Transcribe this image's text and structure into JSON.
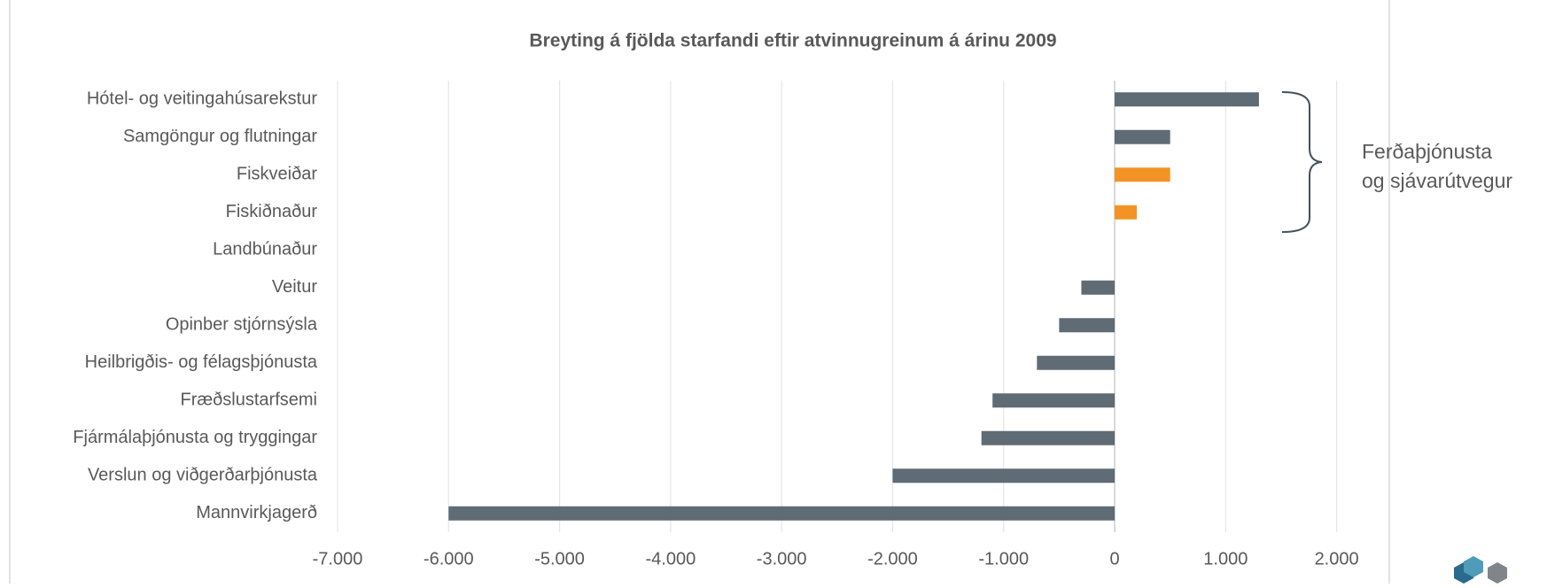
{
  "chart_data": {
    "type": "bar",
    "orientation": "horizontal",
    "title": "Breyting á fjölda starfandi eftir atvinnugreinum á árinu 2009",
    "categories": [
      "Hótel- og veitingahúsarekstur",
      "Samgöngur og flutningar",
      "Fiskveiðar",
      "Fiskiðnaður",
      "Landbúnaður",
      "Veitur",
      "Opinber stjórnsýsla",
      "Heilbrigðis- og félagsþjónusta",
      "Fræðslustarfsemi",
      "Fjármálaþjónusta og tryggingar",
      "Verslun og viðgerðarþjónusta",
      "Mannvirkjagerð"
    ],
    "values": [
      1300,
      500,
      500,
      200,
      0,
      -300,
      -500,
      -700,
      -1100,
      -1200,
      -2000,
      -6000
    ],
    "colors": [
      "#5f6b75",
      "#5f6b75",
      "#f39325",
      "#f39325",
      "#5f6b75",
      "#5f6b75",
      "#5f6b75",
      "#5f6b75",
      "#5f6b75",
      "#5f6b75",
      "#5f6b75",
      "#5f6b75"
    ],
    "xlim": [
      -7000,
      2000
    ],
    "xticks": [
      {
        "value": -7000,
        "label": "-7.000"
      },
      {
        "value": -6000,
        "label": "-6.000"
      },
      {
        "value": -5000,
        "label": "-5.000"
      },
      {
        "value": -4000,
        "label": "-4.000"
      },
      {
        "value": -3000,
        "label": "-3.000"
      },
      {
        "value": -2000,
        "label": "-2.000"
      },
      {
        "value": -1000,
        "label": "-1.000"
      },
      0,
      {
        "value": 1000,
        "label": "1.000"
      },
      {
        "value": 2000,
        "label": "2.000"
      }
    ],
    "grid": true,
    "annotation": [
      "Ferðaþjónusta",
      "og sjávarútvegur"
    ]
  }
}
